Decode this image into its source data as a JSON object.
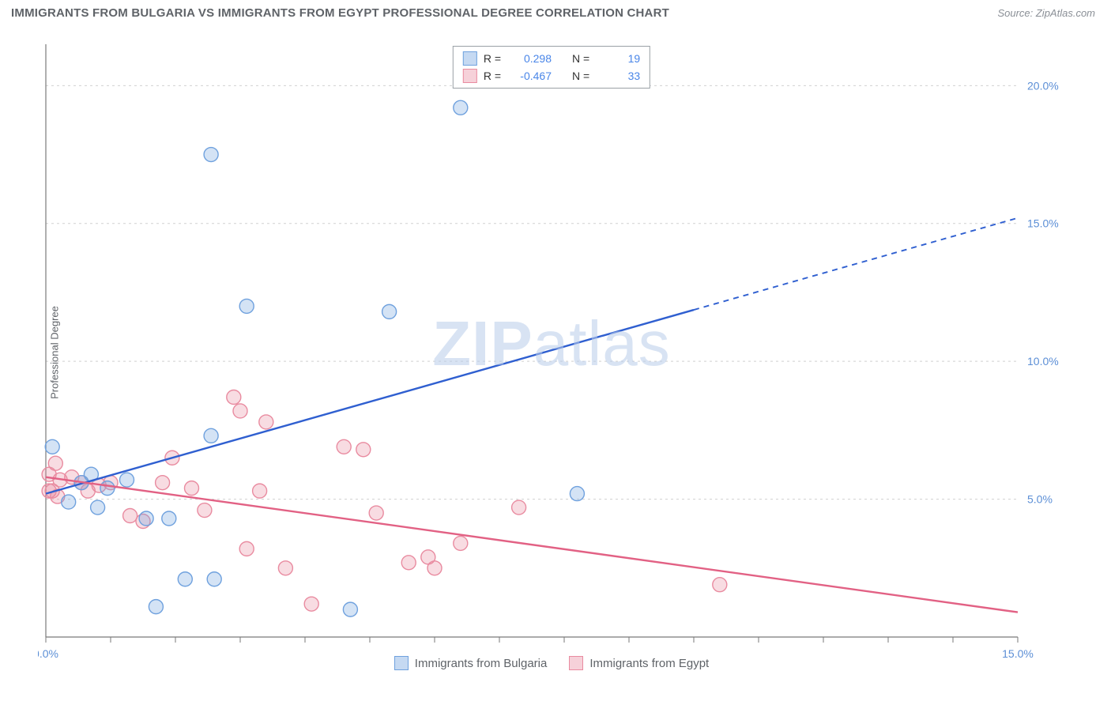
{
  "title": "IMMIGRANTS FROM BULGARIA VS IMMIGRANTS FROM EGYPT PROFESSIONAL DEGREE CORRELATION CHART",
  "source": "Source: ZipAtlas.com",
  "ylabel": "Professional Degree",
  "watermark_a": "ZIP",
  "watermark_b": "atlas",
  "chart": {
    "type": "scatter",
    "background_color": "#ffffff",
    "grid_color": "#d0d0d0",
    "axis_color": "#7a7a7a",
    "tick_label_color": "#5c8fd6",
    "xlim": [
      0,
      15
    ],
    "ylim": [
      0,
      21.5
    ],
    "y_ticks": [
      5.0,
      10.0,
      15.0,
      20.0
    ],
    "y_tick_labels": [
      "5.0%",
      "10.0%",
      "15.0%",
      "20.0%"
    ],
    "x_ticks": [
      0,
      15
    ],
    "x_tick_labels": [
      "0.0%",
      "15.0%"
    ],
    "x_minor_tick_step": 1,
    "marker_radius": 9,
    "marker_stroke_width": 1.4,
    "marker_fill_opacity": 0.3,
    "trend_line_width": 2.4,
    "series": [
      {
        "key": "bulgaria",
        "label": "Immigrants from Bulgaria",
        "color": "#6fa1de",
        "line_color": "#2f5fd0",
        "R": "0.298",
        "N": "19",
        "trend": {
          "x1": 0,
          "y1": 5.2,
          "x2": 15,
          "y2": 15.2,
          "solid_until_x": 10.0
        },
        "points": [
          [
            0.1,
            6.9
          ],
          [
            0.35,
            4.9
          ],
          [
            0.55,
            5.6
          ],
          [
            0.7,
            5.9
          ],
          [
            0.8,
            4.7
          ],
          [
            0.95,
            5.4
          ],
          [
            1.25,
            5.7
          ],
          [
            1.55,
            4.3
          ],
          [
            1.7,
            1.1
          ],
          [
            1.9,
            4.3
          ],
          [
            2.15,
            2.1
          ],
          [
            2.6,
            2.1
          ],
          [
            2.55,
            17.5
          ],
          [
            2.55,
            7.3
          ],
          [
            3.1,
            12.0
          ],
          [
            4.7,
            1.0
          ],
          [
            5.3,
            11.8
          ],
          [
            6.4,
            19.2
          ],
          [
            8.2,
            5.2
          ]
        ]
      },
      {
        "key": "egypt",
        "label": "Immigrants from Egypt",
        "color": "#e98ba0",
        "line_color": "#e26184",
        "R": "-0.467",
        "N": "33",
        "trend": {
          "x1": 0,
          "y1": 5.8,
          "x2": 15,
          "y2": 0.9,
          "solid_until_x": 15
        },
        "points": [
          [
            0.05,
            5.9
          ],
          [
            0.1,
            5.3
          ],
          [
            0.15,
            6.3
          ],
          [
            0.18,
            5.1
          ],
          [
            0.22,
            5.7
          ],
          [
            0.4,
            5.8
          ],
          [
            0.55,
            5.6
          ],
          [
            0.65,
            5.3
          ],
          [
            0.82,
            5.5
          ],
          [
            1.0,
            5.6
          ],
          [
            1.3,
            4.4
          ],
          [
            1.5,
            4.2
          ],
          [
            1.95,
            6.5
          ],
          [
            1.8,
            5.6
          ],
          [
            2.25,
            5.4
          ],
          [
            2.45,
            4.6
          ],
          [
            2.9,
            8.7
          ],
          [
            3.0,
            8.2
          ],
          [
            3.1,
            3.2
          ],
          [
            3.3,
            5.3
          ],
          [
            3.4,
            7.8
          ],
          [
            3.7,
            2.5
          ],
          [
            4.1,
            1.2
          ],
          [
            4.6,
            6.9
          ],
          [
            4.9,
            6.8
          ],
          [
            5.1,
            4.5
          ],
          [
            5.6,
            2.7
          ],
          [
            5.9,
            2.9
          ],
          [
            6.0,
            2.5
          ],
          [
            6.4,
            3.4
          ],
          [
            7.3,
            4.7
          ],
          [
            10.4,
            1.9
          ],
          [
            0.05,
            5.3
          ]
        ]
      }
    ]
  },
  "legend": {
    "r_label": "R =",
    "n_label": "N ="
  }
}
